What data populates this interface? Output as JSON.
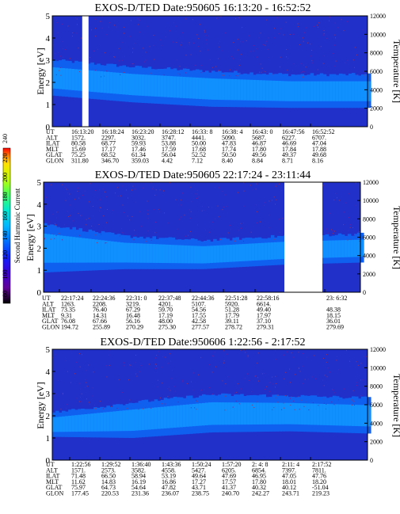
{
  "chart_data": [
    {
      "type": "heatmap",
      "title": "EXOS-D/TED   Date:950605  16:13:20 - 16:52:52",
      "ylabel": "Energy [eV]",
      "y2label": "Temperature [K]",
      "ylim": [
        0,
        5
      ],
      "y2lim": [
        0,
        12000
      ],
      "yticks": [
        "0",
        "1",
        "2",
        "3",
        "4",
        "5"
      ],
      "y2ticks": [
        "0",
        "2000",
        "4000",
        "6000",
        "8000",
        "10000",
        "12000"
      ],
      "gaps": [
        [
          0.095,
          0.115
        ]
      ],
      "band": {
        "center_eV": [
          2.2,
          1.9,
          1.7,
          1.6,
          1.6
        ],
        "width_eV": [
          1.6,
          1.6,
          1.6,
          1.5,
          1.5
        ]
      },
      "table": {
        "row_labels": [
          "UT",
          "ALT",
          "ILAT",
          "MLT",
          "GLAT",
          "GLON"
        ],
        "columns": [
          [
            "16:13:20",
            "1572.",
            "80.58",
            "15.69",
            "75.25",
            "311.80"
          ],
          [
            "16:18:24",
            "2297.",
            "68.77",
            "17.17",
            "68.52",
            "346.70"
          ],
          [
            "16:23:20",
            "3032.",
            "59.93",
            "17.46",
            "61.34",
            "359.03"
          ],
          [
            "16:28:12",
            "3747.",
            "53.88",
            "17.59",
            "56.04",
            "4.42"
          ],
          [
            "16:33: 8",
            "4441.",
            "50.00",
            "17.68",
            "52.52",
            "7.12"
          ],
          [
            "16:38: 4",
            "5090.",
            "47.83",
            "17.74",
            "50.50",
            "8.40"
          ],
          [
            "16:43: 0",
            "5687.",
            "46.87",
            "17.80",
            "49.56",
            "8.84"
          ],
          [
            "16:47:56",
            "6227.",
            "46.69",
            "17.84",
            "49.37",
            "8.71"
          ],
          [
            "16:52:52",
            "6707.",
            "47.04",
            "17.88",
            "49.68",
            "8.16"
          ]
        ]
      }
    },
    {
      "type": "heatmap",
      "title": "EXOS-D/TED   Date:950605  22:17:24 - 23:11:44",
      "ylabel": "Energy [eV]",
      "y2label": "Temperature [K]",
      "ylim": [
        0,
        5
      ],
      "y2lim": [
        0,
        12000
      ],
      "yticks": [
        "0",
        "1",
        "2",
        "3",
        "4",
        "5"
      ],
      "y2ticks": [
        "0",
        "2000",
        "4000",
        "6000",
        "8000",
        "10000",
        "12000"
      ],
      "gaps": [
        [
          0.76,
          0.88
        ]
      ],
      "band": {
        "center_eV": [
          2.0,
          1.8,
          1.7,
          1.9,
          2.0
        ],
        "width_eV": [
          2.2,
          1.5,
          1.3,
          1.3,
          1.3
        ]
      },
      "table": {
        "row_labels": [
          "UT",
          "ALT",
          "ILAT",
          "MLT",
          "GLAT",
          "GLON"
        ],
        "columns": [
          [
            "22:17:24",
            "1263.",
            "73.35",
            "9.31",
            "76.08",
            "194.72"
          ],
          [
            "22:24:36",
            "2208.",
            "76.40",
            "14.31",
            "67.66",
            "255.89"
          ],
          [
            "22:31: 0",
            "3219.",
            "67.29",
            "16.48",
            "56.16",
            "270.29"
          ],
          [
            "22:37:48",
            "4201.",
            "59.70",
            "17.19",
            "48.00",
            "275.30"
          ],
          [
            "22:44:36",
            "5107.",
            "54.56",
            "17.55",
            "42.58",
            "277.57"
          ],
          [
            "22:51:28",
            "5920.",
            "51.28",
            "17.79",
            "39.11",
            "278.72"
          ],
          [
            "22:58:16",
            "6614.",
            "49.40",
            "17.97",
            "37.10",
            "279.31"
          ],
          [
            "23: 6:32",
            "",
            "48.38",
            "18.15",
            "36.01",
            "279.69"
          ]
        ]
      }
    },
    {
      "type": "heatmap",
      "title": "EXOS-D/TED   Date:950606   1:22:56 - 2:17:52",
      "ylabel": "Energy [eV]",
      "y2label": "Temperature [K]",
      "ylim": [
        0,
        5
      ],
      "y2lim": [
        0,
        12000
      ],
      "yticks": [
        "0",
        "1",
        "2",
        "3",
        "4",
        "5"
      ],
      "y2ticks": [
        "0",
        "2000",
        "4000",
        "6000",
        "8000",
        "10000",
        "12000"
      ],
      "gaps": [],
      "band": {
        "center_eV": [
          1.6,
          1.8,
          2.1,
          2.1,
          2.0
        ],
        "width_eV": [
          1.1,
          1.6,
          1.7,
          1.6,
          1.6
        ]
      },
      "table": {
        "row_labels": [
          "UT",
          "ALT",
          "ILAT",
          "MLT",
          "GLAT",
          "GLON"
        ],
        "columns": [
          [
            "1:22:56",
            "1571.",
            "71.48",
            "11.62",
            "75.97",
            "177.45"
          ],
          [
            "1:29:52",
            "2573.",
            "66.50",
            "14.83",
            "64.73",
            "220.53"
          ],
          [
            "1:36:40",
            "3582.",
            "58.94",
            "16.19",
            "54.64",
            "231.36"
          ],
          [
            "1:43:36",
            "4558.",
            "53.19",
            "16.86",
            "47.82",
            "236.07"
          ],
          [
            "1:50:24",
            "5427.",
            "49.64",
            "17.27",
            "43.71",
            "238.75"
          ],
          [
            "1:57:20",
            "6205.",
            "47.69",
            "17.57",
            "41.37",
            "240.70"
          ],
          [
            "2: 4: 8",
            "6854.",
            "46.95",
            "17.80",
            "40.32",
            "242.27"
          ],
          [
            "2:11: 4",
            "7397.",
            "47.05",
            "18.01",
            "40.12",
            "243.71"
          ],
          [
            "2:17:52",
            "7811.",
            "47.76",
            "18.20",
            "-51.04",
            "219.23"
          ]
        ]
      }
    }
  ],
  "colorbar": {
    "label": "Second Harmonic Current",
    "ticks": [
      "80",
      "100",
      "120",
      "140",
      "160",
      "180",
      "200",
      "220",
      "240"
    ],
    "range": [
      80,
      240
    ],
    "colors": [
      "#000000",
      "#60009a",
      "#3a00d8",
      "#1020ff",
      "#0070ff",
      "#00b8ff",
      "#00e8d0",
      "#40ff60",
      "#c0ff00",
      "#ffe000",
      "#ff8000",
      "#ff0000"
    ]
  }
}
